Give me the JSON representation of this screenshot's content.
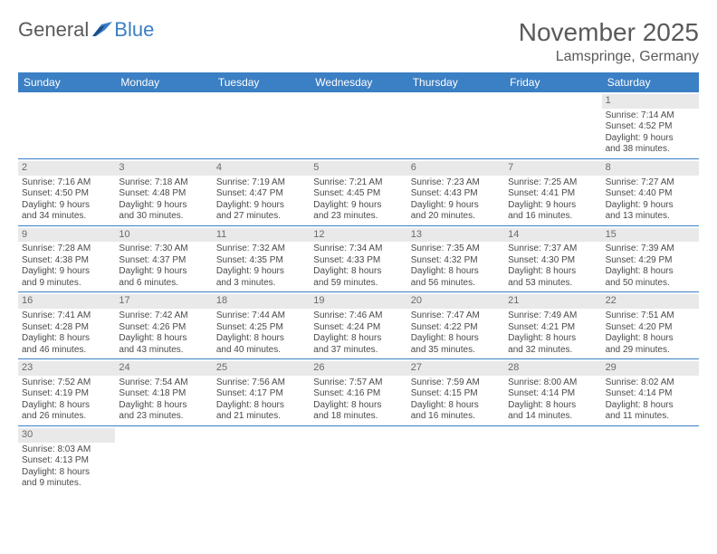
{
  "logo": {
    "general": "General",
    "blue": "Blue"
  },
  "title": "November 2025",
  "location": "Lamspringe, Germany",
  "colors": {
    "header_bg": "#3b7fc4",
    "header_text": "#ffffff",
    "daynum_bg": "#e9e9e9",
    "rule": "#3b7fc4"
  },
  "weekday_labels": [
    "Sunday",
    "Monday",
    "Tuesday",
    "Wednesday",
    "Thursday",
    "Friday",
    "Saturday"
  ],
  "weeks": [
    [
      null,
      null,
      null,
      null,
      null,
      null,
      {
        "n": "1",
        "sr": "Sunrise: 7:14 AM",
        "ss": "Sunset: 4:52 PM",
        "d1": "Daylight: 9 hours",
        "d2": "and 38 minutes."
      }
    ],
    [
      {
        "n": "2",
        "sr": "Sunrise: 7:16 AM",
        "ss": "Sunset: 4:50 PM",
        "d1": "Daylight: 9 hours",
        "d2": "and 34 minutes."
      },
      {
        "n": "3",
        "sr": "Sunrise: 7:18 AM",
        "ss": "Sunset: 4:48 PM",
        "d1": "Daylight: 9 hours",
        "d2": "and 30 minutes."
      },
      {
        "n": "4",
        "sr": "Sunrise: 7:19 AM",
        "ss": "Sunset: 4:47 PM",
        "d1": "Daylight: 9 hours",
        "d2": "and 27 minutes."
      },
      {
        "n": "5",
        "sr": "Sunrise: 7:21 AM",
        "ss": "Sunset: 4:45 PM",
        "d1": "Daylight: 9 hours",
        "d2": "and 23 minutes."
      },
      {
        "n": "6",
        "sr": "Sunrise: 7:23 AM",
        "ss": "Sunset: 4:43 PM",
        "d1": "Daylight: 9 hours",
        "d2": "and 20 minutes."
      },
      {
        "n": "7",
        "sr": "Sunrise: 7:25 AM",
        "ss": "Sunset: 4:41 PM",
        "d1": "Daylight: 9 hours",
        "d2": "and 16 minutes."
      },
      {
        "n": "8",
        "sr": "Sunrise: 7:27 AM",
        "ss": "Sunset: 4:40 PM",
        "d1": "Daylight: 9 hours",
        "d2": "and 13 minutes."
      }
    ],
    [
      {
        "n": "9",
        "sr": "Sunrise: 7:28 AM",
        "ss": "Sunset: 4:38 PM",
        "d1": "Daylight: 9 hours",
        "d2": "and 9 minutes."
      },
      {
        "n": "10",
        "sr": "Sunrise: 7:30 AM",
        "ss": "Sunset: 4:37 PM",
        "d1": "Daylight: 9 hours",
        "d2": "and 6 minutes."
      },
      {
        "n": "11",
        "sr": "Sunrise: 7:32 AM",
        "ss": "Sunset: 4:35 PM",
        "d1": "Daylight: 9 hours",
        "d2": "and 3 minutes."
      },
      {
        "n": "12",
        "sr": "Sunrise: 7:34 AM",
        "ss": "Sunset: 4:33 PM",
        "d1": "Daylight: 8 hours",
        "d2": "and 59 minutes."
      },
      {
        "n": "13",
        "sr": "Sunrise: 7:35 AM",
        "ss": "Sunset: 4:32 PM",
        "d1": "Daylight: 8 hours",
        "d2": "and 56 minutes."
      },
      {
        "n": "14",
        "sr": "Sunrise: 7:37 AM",
        "ss": "Sunset: 4:30 PM",
        "d1": "Daylight: 8 hours",
        "d2": "and 53 minutes."
      },
      {
        "n": "15",
        "sr": "Sunrise: 7:39 AM",
        "ss": "Sunset: 4:29 PM",
        "d1": "Daylight: 8 hours",
        "d2": "and 50 minutes."
      }
    ],
    [
      {
        "n": "16",
        "sr": "Sunrise: 7:41 AM",
        "ss": "Sunset: 4:28 PM",
        "d1": "Daylight: 8 hours",
        "d2": "and 46 minutes."
      },
      {
        "n": "17",
        "sr": "Sunrise: 7:42 AM",
        "ss": "Sunset: 4:26 PM",
        "d1": "Daylight: 8 hours",
        "d2": "and 43 minutes."
      },
      {
        "n": "18",
        "sr": "Sunrise: 7:44 AM",
        "ss": "Sunset: 4:25 PM",
        "d1": "Daylight: 8 hours",
        "d2": "and 40 minutes."
      },
      {
        "n": "19",
        "sr": "Sunrise: 7:46 AM",
        "ss": "Sunset: 4:24 PM",
        "d1": "Daylight: 8 hours",
        "d2": "and 37 minutes."
      },
      {
        "n": "20",
        "sr": "Sunrise: 7:47 AM",
        "ss": "Sunset: 4:22 PM",
        "d1": "Daylight: 8 hours",
        "d2": "and 35 minutes."
      },
      {
        "n": "21",
        "sr": "Sunrise: 7:49 AM",
        "ss": "Sunset: 4:21 PM",
        "d1": "Daylight: 8 hours",
        "d2": "and 32 minutes."
      },
      {
        "n": "22",
        "sr": "Sunrise: 7:51 AM",
        "ss": "Sunset: 4:20 PM",
        "d1": "Daylight: 8 hours",
        "d2": "and 29 minutes."
      }
    ],
    [
      {
        "n": "23",
        "sr": "Sunrise: 7:52 AM",
        "ss": "Sunset: 4:19 PM",
        "d1": "Daylight: 8 hours",
        "d2": "and 26 minutes."
      },
      {
        "n": "24",
        "sr": "Sunrise: 7:54 AM",
        "ss": "Sunset: 4:18 PM",
        "d1": "Daylight: 8 hours",
        "d2": "and 23 minutes."
      },
      {
        "n": "25",
        "sr": "Sunrise: 7:56 AM",
        "ss": "Sunset: 4:17 PM",
        "d1": "Daylight: 8 hours",
        "d2": "and 21 minutes."
      },
      {
        "n": "26",
        "sr": "Sunrise: 7:57 AM",
        "ss": "Sunset: 4:16 PM",
        "d1": "Daylight: 8 hours",
        "d2": "and 18 minutes."
      },
      {
        "n": "27",
        "sr": "Sunrise: 7:59 AM",
        "ss": "Sunset: 4:15 PM",
        "d1": "Daylight: 8 hours",
        "d2": "and 16 minutes."
      },
      {
        "n": "28",
        "sr": "Sunrise: 8:00 AM",
        "ss": "Sunset: 4:14 PM",
        "d1": "Daylight: 8 hours",
        "d2": "and 14 minutes."
      },
      {
        "n": "29",
        "sr": "Sunrise: 8:02 AM",
        "ss": "Sunset: 4:14 PM",
        "d1": "Daylight: 8 hours",
        "d2": "and 11 minutes."
      }
    ],
    [
      {
        "n": "30",
        "sr": "Sunrise: 8:03 AM",
        "ss": "Sunset: 4:13 PM",
        "d1": "Daylight: 8 hours",
        "d2": "and 9 minutes."
      },
      null,
      null,
      null,
      null,
      null,
      null
    ]
  ]
}
